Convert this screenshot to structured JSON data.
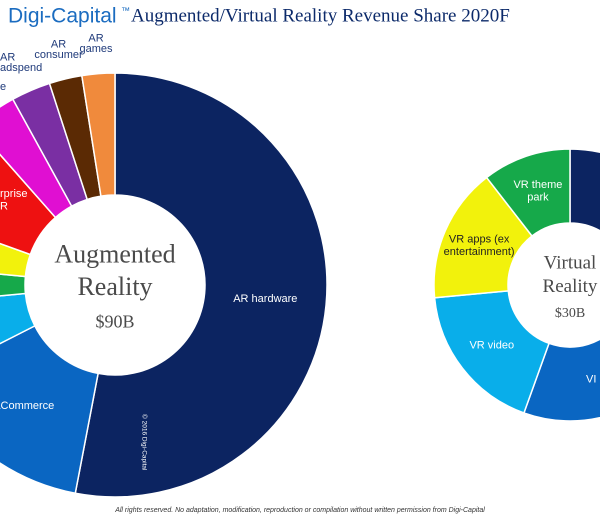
{
  "logo": "Digi-Capital",
  "logo_mark": "™",
  "title": "Augmented/Virtual Reality Revenue Share 2020F",
  "watermark": "© 2016 Digi-Capital",
  "footer": "All rights reserved. No adaptation, modification, reproduction or compilation without written permission from Digi-Capital",
  "chart_data": [
    {
      "type": "pie",
      "donut": true,
      "center_label": [
        "Augmented",
        "Reality"
      ],
      "total": "$90B",
      "categories": [
        [
          "AR hardware"
        ],
        [
          "aCommerce"
        ],
        null,
        null,
        null,
        [
          "rprise",
          "R"
        ],
        [
          "e"
        ],
        [
          "AR",
          "adspend"
        ],
        [
          "AR",
          "consumer"
        ],
        [
          "AR",
          "games"
        ]
      ],
      "values": [
        53,
        14.5,
        6,
        3,
        4,
        8,
        3.5,
        3,
        2.5,
        2.5
      ],
      "colors": [
        "#0c2461",
        "#0a66c2",
        "#09aeea",
        "#16a94a",
        "#f2f20c",
        "#ee1111",
        "#e00fd2",
        "#7a2fa3",
        "#5b2a04",
        "#f08a3c"
      ]
    },
    {
      "type": "pie",
      "donut": true,
      "center_label": [
        "Virtual",
        "Reality"
      ],
      "total": "$30B",
      "categories": [
        null,
        [
          "VI"
        ],
        [
          "VR video"
        ],
        [
          "VR apps (ex",
          "entertainment)"
        ],
        [
          "VR theme",
          "park"
        ]
      ],
      "values": [
        35,
        20.5,
        18,
        16,
        10.5
      ],
      "colors": [
        "#0c2461",
        "#0a66c2",
        "#09aeea",
        "#f2f20c",
        "#16a94a"
      ]
    }
  ]
}
